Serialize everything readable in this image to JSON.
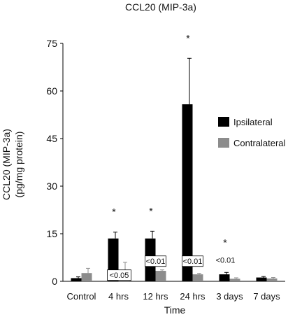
{
  "chart_data": {
    "type": "bar",
    "title": "CCL20 (MIP-3a)",
    "xlabel": "Time",
    "ylabel_lines": [
      "CCL20 (MIP-3a)",
      "(pg/mg protein)"
    ],
    "ylim": [
      0,
      75
    ],
    "yticks": [
      "0",
      "15",
      "30",
      "45",
      "60",
      "75"
    ],
    "categories": [
      "Control",
      "4 hrs",
      "12 hrs",
      "24 hrs",
      "3 days",
      "7 days"
    ],
    "series": [
      {
        "name": "Ipsilateral",
        "color": "#000000",
        "values": [
          1.0,
          13.5,
          13.5,
          55.8,
          2.2,
          1.2
        ],
        "errors": [
          0.4,
          2.0,
          2.3,
          14.5,
          0.6,
          0.3
        ]
      },
      {
        "name": "Contralateral",
        "color": "#8c8c8c",
        "values": [
          2.6,
          3.0,
          3.3,
          2.2,
          0.8,
          0.9
        ],
        "errors": [
          1.5,
          3.0,
          0.3,
          0.3,
          0.3,
          0.3
        ]
      }
    ],
    "significance": [
      "",
      "*",
      "*",
      "*",
      "*",
      ""
    ],
    "p_values": [
      "",
      "<0.05",
      "<0.01",
      "<0.01",
      "<0.01",
      ""
    ],
    "legend_position": "right",
    "grid": false
  }
}
